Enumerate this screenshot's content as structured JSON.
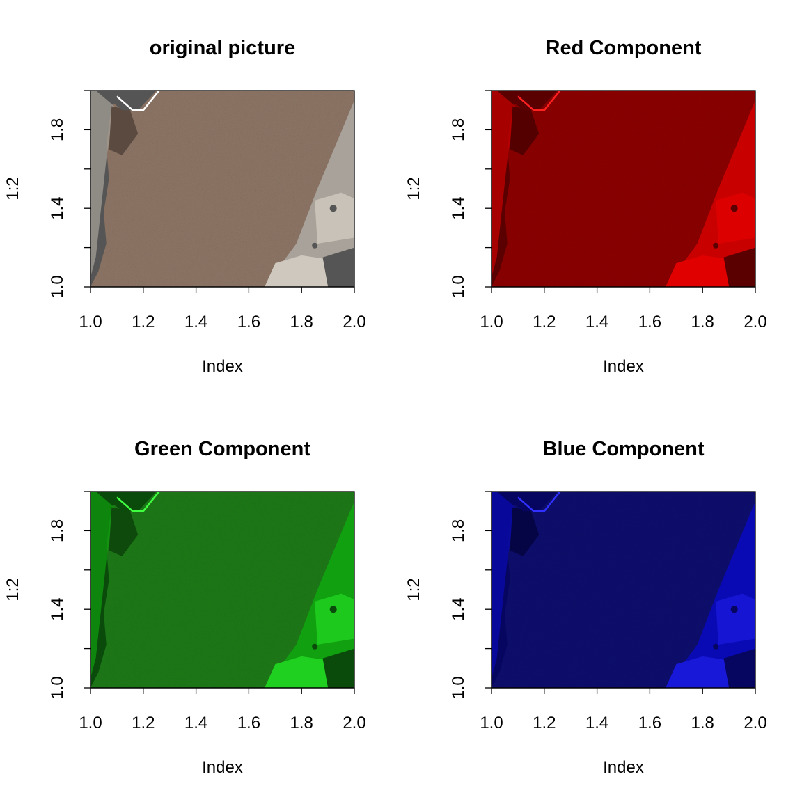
{
  "chart_data": [
    {
      "type": "image",
      "title": "original picture",
      "xlabel": "Index",
      "ylabel": "1:2",
      "xlim": [
        1.0,
        2.0
      ],
      "ylim": [
        1.0,
        2.0
      ],
      "x_ticks": [
        "1.0",
        "1.2",
        "1.4",
        "1.6",
        "1.8",
        "2.0"
      ],
      "x_tick_values": [
        1.0,
        1.2,
        1.4,
        1.6,
        1.8,
        2.0
      ],
      "y_ticks": [
        "1.0",
        "1.4",
        "1.8"
      ],
      "y_tick_values": [
        1.0,
        1.4,
        1.8
      ],
      "y_minor_tick_values": [
        1.2,
        1.6
      ],
      "channel": "rgb",
      "colors": {
        "ground": "#8e7666",
        "shade": "#5a4a40",
        "hardware": "#a8a29a",
        "hardware_dark": "#555555",
        "hardware_light": "#cfc8be",
        "edge": "#ffffff"
      }
    },
    {
      "type": "image",
      "title": "Red Component",
      "xlabel": "Index",
      "ylabel": "1:2",
      "xlim": [
        1.0,
        2.0
      ],
      "ylim": [
        1.0,
        2.0
      ],
      "x_ticks": [
        "1.0",
        "1.2",
        "1.4",
        "1.6",
        "1.8",
        "2.0"
      ],
      "x_tick_values": [
        1.0,
        1.2,
        1.4,
        1.6,
        1.8,
        2.0
      ],
      "y_ticks": [
        "1.0",
        "1.4",
        "1.8"
      ],
      "y_tick_values": [
        1.0,
        1.4,
        1.8
      ],
      "y_minor_tick_values": [
        1.2,
        1.6
      ],
      "channel": "red",
      "colors": {
        "ground": "#8c0000",
        "shade": "#550000",
        "hardware": "#c80000",
        "hardware_dark": "#5a0000",
        "hardware_light": "#e00000",
        "edge": "#ff2020"
      }
    },
    {
      "type": "image",
      "title": "Green Component",
      "xlabel": "Index",
      "ylabel": "1:2",
      "xlim": [
        1.0,
        2.0
      ],
      "ylim": [
        1.0,
        2.0
      ],
      "x_ticks": [
        "1.0",
        "1.2",
        "1.4",
        "1.6",
        "1.8",
        "2.0"
      ],
      "x_tick_values": [
        1.0,
        1.2,
        1.4,
        1.6,
        1.8,
        2.0
      ],
      "y_ticks": [
        "1.0",
        "1.4",
        "1.8"
      ],
      "y_tick_values": [
        1.0,
        1.4,
        1.8
      ],
      "y_minor_tick_values": [
        1.2,
        1.6
      ],
      "channel": "green",
      "colors": {
        "ground": "#1e7a1a",
        "shade": "#0f4a0d",
        "hardware": "#10a010",
        "hardware_dark": "#0a4a0a",
        "hardware_light": "#20d020",
        "edge": "#40ff40"
      }
    },
    {
      "type": "image",
      "title": "Blue Component",
      "xlabel": "Index",
      "ylabel": "1:2",
      "xlim": [
        1.0,
        2.0
      ],
      "ylim": [
        1.0,
        2.0
      ],
      "x_ticks": [
        "1.0",
        "1.2",
        "1.4",
        "1.6",
        "1.8",
        "2.0"
      ],
      "x_tick_values": [
        1.0,
        1.2,
        1.4,
        1.6,
        1.8,
        2.0
      ],
      "y_ticks": [
        "1.0",
        "1.4",
        "1.8"
      ],
      "y_tick_values": [
        1.0,
        1.4,
        1.8
      ],
      "y_minor_tick_values": [
        1.2,
        1.6
      ],
      "channel": "blue",
      "colors": {
        "ground": "#0a0a6e",
        "shade": "#050545",
        "hardware": "#0a0ab4",
        "hardware_dark": "#060660",
        "hardware_light": "#1818d8",
        "edge": "#3030ff"
      }
    }
  ]
}
